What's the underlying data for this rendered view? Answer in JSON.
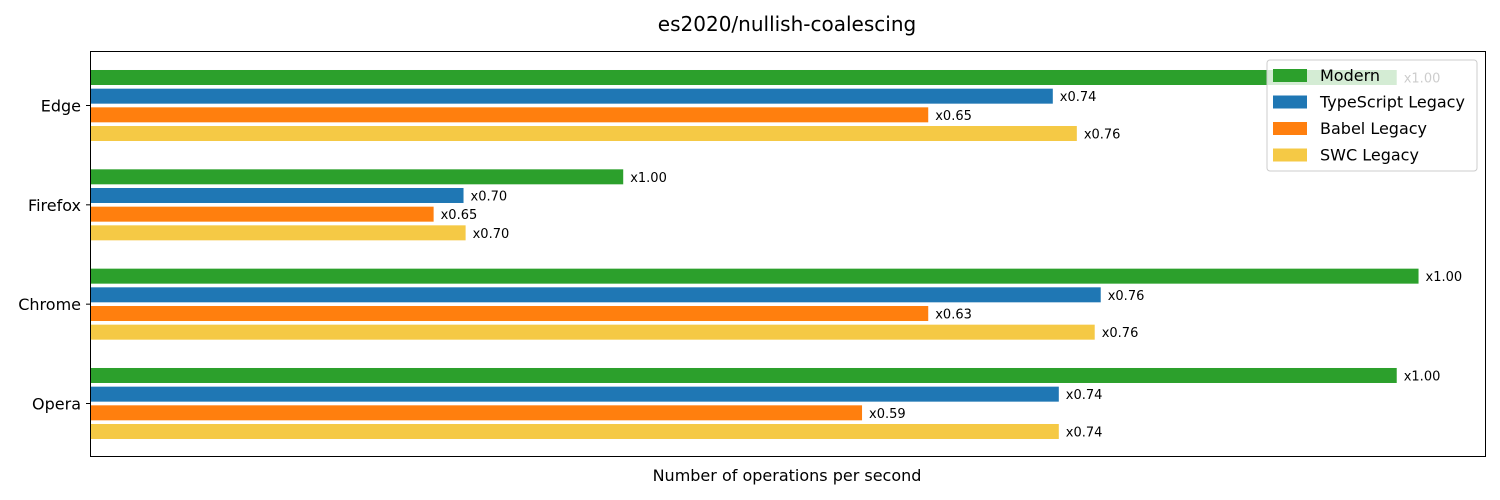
{
  "chart_data": {
    "type": "bar",
    "orientation": "horizontal",
    "title": "es2020/nullish-coalescing",
    "xlabel": "Number of operations per second",
    "ylabel": "",
    "x_ticks_visible": false,
    "grid": false,
    "legend_position": "top-right",
    "categories": [
      "Edge",
      "Firefox",
      "Chrome",
      "Opera"
    ],
    "series": [
      {
        "name": "Modern",
        "color": "#2ca02c",
        "values": [
          1.0,
          0.4076,
          1.0167,
          1.0
        ],
        "labels": [
          "x1.00",
          "x1.00",
          "x1.00",
          "x1.00"
        ]
      },
      {
        "name": "TypeScript Legacy",
        "color": "#1f77b4",
        "values": [
          0.7366,
          0.2853,
          0.7733,
          0.7412
        ],
        "labels": [
          "x0.74",
          "x0.70",
          "x0.76",
          "x0.74"
        ]
      },
      {
        "name": "Babel Legacy",
        "color": "#ff7f0e",
        "values": [
          0.6412,
          0.2624,
          0.6412,
          0.5905
        ],
        "labels": [
          "x0.65",
          "x0.65",
          "x0.63",
          "x0.59"
        ]
      },
      {
        "name": "SWC Legacy",
        "color": "#f5c945",
        "values": [
          0.755,
          0.2869,
          0.7687,
          0.7412
        ],
        "labels": [
          "x0.76",
          "x0.70",
          "x0.76",
          "x0.74"
        ]
      }
    ],
    "xlim": [
      0,
      1.0676
    ]
  }
}
